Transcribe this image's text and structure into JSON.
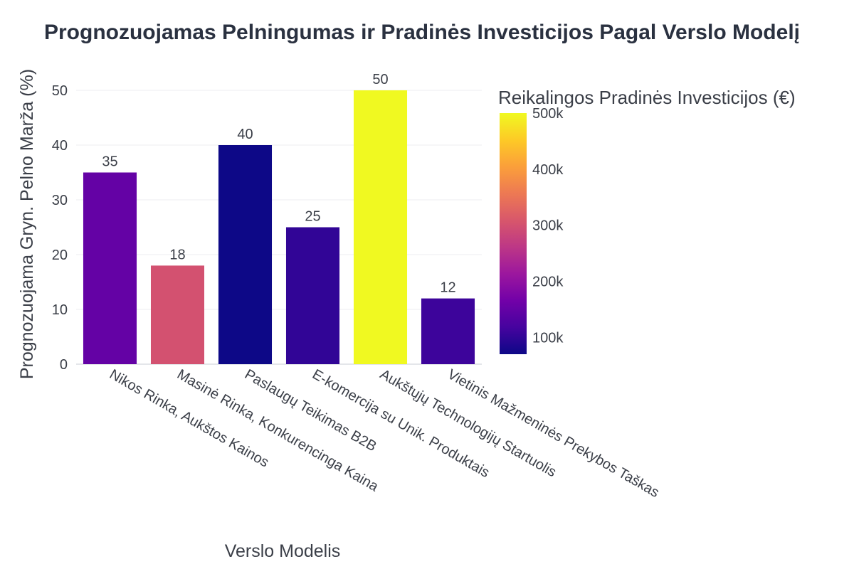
{
  "chart_data": {
    "type": "bar",
    "title": "Prognozuojamas Pelningumas ir Pradinės Investicijos Pagal Verslo Modelį",
    "xlabel": "Verslo Modelis",
    "ylabel": "Prognozuojama Gryn. Pelno Marža (%)",
    "categories": [
      "Nikos Rinka, Aukštos Kainos",
      "Masinė Rinka, Konkurencinga Kaina",
      "Paslaugų Teikimas B2B",
      "E-komercija su Unik. Produktais",
      "Aukštųjų Technologijų Startuolis",
      "Vietinis Mažmeninės Prekybos Taškas"
    ],
    "values": [
      35,
      18,
      40,
      25,
      50,
      12
    ],
    "color_values": [
      150000,
      300000,
      70000,
      100000,
      500000,
      110000
    ],
    "colorbar": {
      "title": "Reikalingos Pradinės Investicijos (€)",
      "range": [
        70000,
        500000
      ],
      "ticks": [
        100000,
        200000,
        300000,
        400000,
        500000
      ],
      "tick_labels": [
        "100k",
        "200k",
        "300k",
        "400k",
        "500k"
      ],
      "colorscale": [
        "#0d0887",
        "#46039f",
        "#7201a8",
        "#9c179e",
        "#bd3786",
        "#d8576b",
        "#ed7953",
        "#fb9f3a",
        "#fdca26",
        "#f0f921"
      ]
    },
    "ylim": [
      0,
      50
    ],
    "yticks": [
      0,
      10,
      20,
      30,
      40,
      50
    ],
    "grid": true,
    "legend": "colorbar-right"
  }
}
